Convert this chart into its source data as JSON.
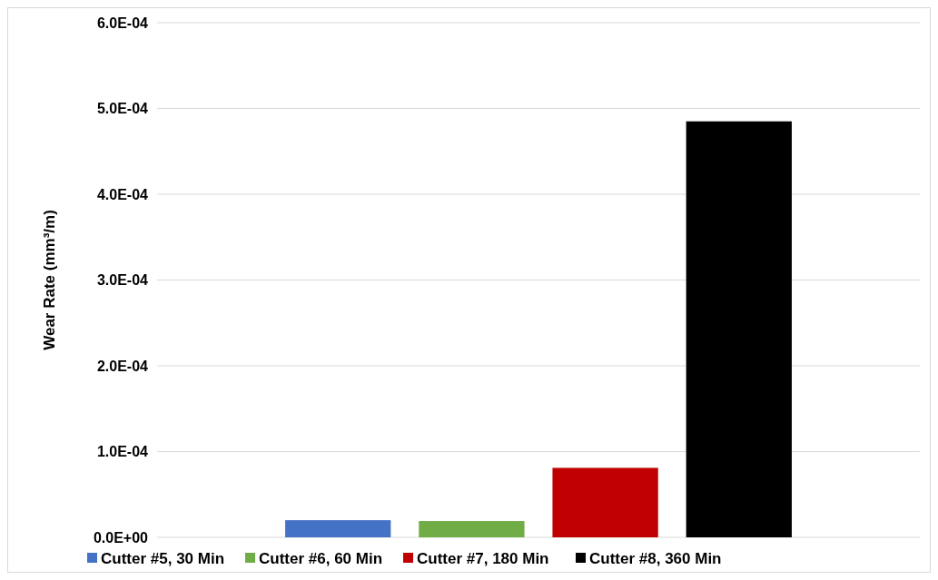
{
  "chart_data": {
    "type": "bar",
    "ylabel": "Wear Rate (mm³/m)",
    "categories": [
      null
    ],
    "series": [
      {
        "name": "Cutter #5, 30 Min",
        "color": "#4472c4",
        "values": [
          2e-05
        ]
      },
      {
        "name": "Cutter #6, 60 Min",
        "color": "#70ad47",
        "values": [
          1.9e-05
        ]
      },
      {
        "name": "Cutter #7, 180 Min",
        "color": "#c00000",
        "values": [
          8.1e-05
        ]
      },
      {
        "name": "Cutter #8, 360 Min",
        "color": "#000000",
        "values": [
          0.000485
        ]
      }
    ],
    "ylim": [
      0,
      0.0006
    ],
    "yticks": [
      {
        "value": 0,
        "label": "0.0E+00"
      },
      {
        "value": 0.0001,
        "label": "1.0E-04"
      },
      {
        "value": 0.0002,
        "label": "2.0E-04"
      },
      {
        "value": 0.0003,
        "label": "3.0E-04"
      },
      {
        "value": 0.0004,
        "label": "4.0E-04"
      },
      {
        "value": 0.0005,
        "label": "5.0E-04"
      },
      {
        "value": 0.0006,
        "label": "6.0E-04"
      }
    ],
    "grid": "y",
    "legend": "bottom"
  }
}
